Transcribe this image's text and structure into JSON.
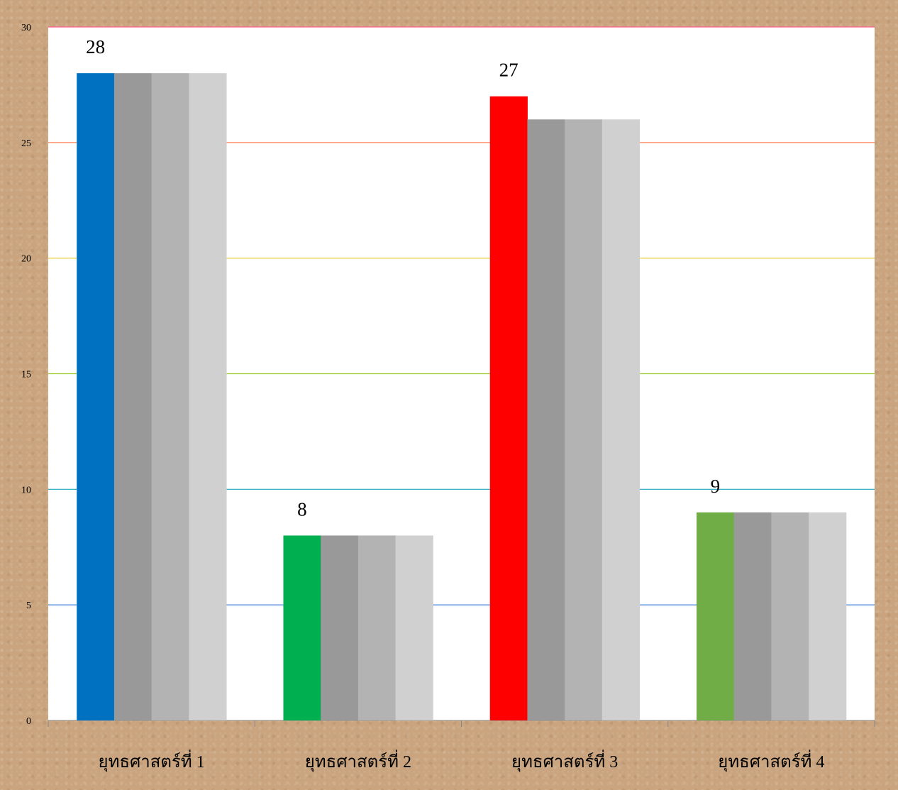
{
  "chart_data": {
    "type": "bar",
    "categories": [
      "ยุทธศาสตร์ที่ 1",
      "ยุทธศาสตร์ที่ 2",
      "ยุทธศาสตร์ที่ 3",
      "ยุทธศาสตร์ที่ 4"
    ],
    "series": [
      {
        "values": [
          28,
          8,
          27,
          9
        ],
        "colors": [
          "#0070c0",
          "#00b050",
          "#ff0000",
          "#70ad47"
        ]
      },
      {
        "values": [
          28,
          8,
          26,
          9
        ],
        "color": "#999999"
      },
      {
        "values": [
          28,
          8,
          26,
          9
        ],
        "color": "#b3b3b3"
      },
      {
        "values": [
          28,
          8,
          26,
          9
        ],
        "color": "#d0d0d0"
      }
    ],
    "data_labels": [
      "28",
      "8",
      "27",
      "9"
    ],
    "yticks": [
      "0",
      "5",
      "10",
      "15",
      "20",
      "25",
      "30"
    ],
    "gridline_colors": [
      "#2e6fd6",
      "#17a2b8",
      "#9acd32",
      "#e6c619",
      "#ff7f50",
      "#ff5c8a"
    ],
    "ylim": [
      0,
      30
    ],
    "grid": true,
    "legend": "none"
  }
}
